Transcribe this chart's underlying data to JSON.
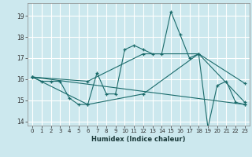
{
  "xlabel": "Humidex (Indice chaleur)",
  "bg_color": "#cce8ee",
  "grid_color": "#ffffff",
  "line_color": "#1a6b6b",
  "xlim": [
    -0.5,
    23.5
  ],
  "ylim": [
    13.8,
    19.6
  ],
  "yticks": [
    14,
    15,
    16,
    17,
    18,
    19
  ],
  "xticks": [
    0,
    1,
    2,
    3,
    4,
    5,
    6,
    7,
    8,
    9,
    10,
    11,
    12,
    13,
    14,
    15,
    16,
    17,
    18,
    19,
    20,
    21,
    22,
    23
  ],
  "series": [
    {
      "x": [
        0,
        1,
        2,
        3,
        4,
        5,
        6,
        7,
        8,
        9,
        10,
        11,
        12,
        13,
        14,
        15,
        16,
        17,
        18,
        19,
        20,
        21,
        22,
        23
      ],
      "y": [
        16.1,
        15.9,
        15.9,
        15.9,
        15.1,
        14.8,
        14.8,
        16.3,
        15.3,
        15.3,
        17.4,
        17.6,
        17.4,
        17.2,
        17.2,
        19.2,
        18.1,
        17.0,
        17.2,
        13.7,
        15.7,
        15.9,
        14.9,
        14.8
      ]
    },
    {
      "x": [
        0,
        23
      ],
      "y": [
        16.1,
        14.8
      ]
    },
    {
      "x": [
        0,
        6,
        12,
        18,
        23
      ],
      "y": [
        16.1,
        14.8,
        15.3,
        17.2,
        15.8
      ]
    },
    {
      "x": [
        0,
        6,
        12,
        18,
        23
      ],
      "y": [
        16.1,
        15.9,
        17.2,
        17.2,
        14.9
      ]
    }
  ]
}
